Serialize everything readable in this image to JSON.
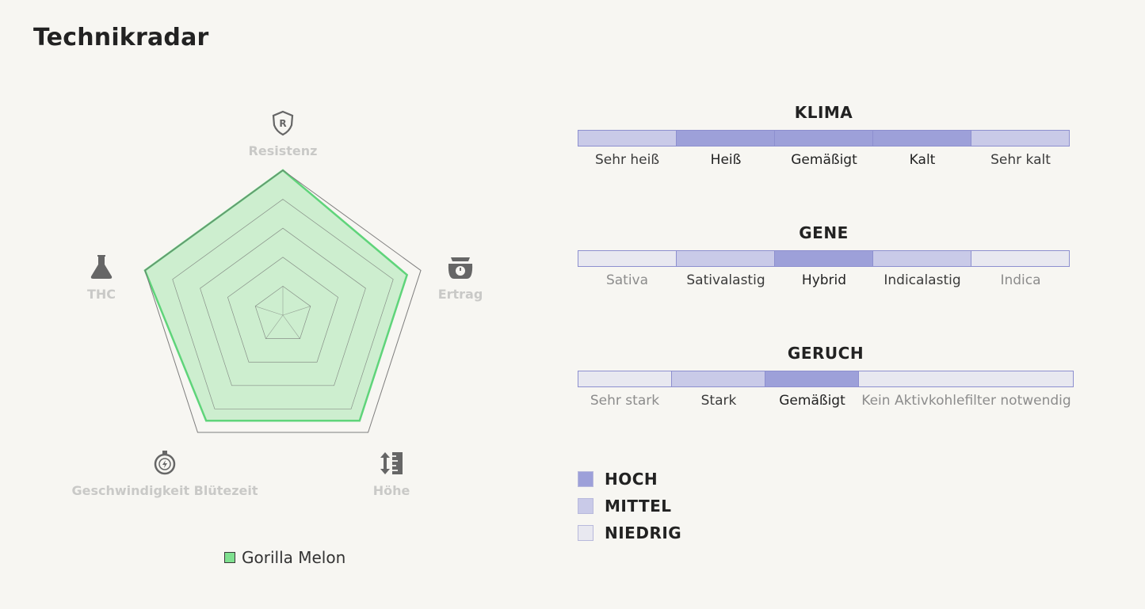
{
  "page": {
    "title": "Technikradar"
  },
  "colors": {
    "series_fill": "#7fe08f",
    "series_stroke": "#5fd47a",
    "grid": "#707070",
    "icon": "#666666",
    "hoch": "#9da0d9",
    "mittel": "#c9cae8",
    "niedrig": "#e8e8f0"
  },
  "chart_data": {
    "type": "radar",
    "axes": [
      {
        "label": "Resistenz",
        "icon": "shield-r-icon"
      },
      {
        "label": "Ertrag",
        "icon": "scale-icon"
      },
      {
        "label": "Höhe",
        "icon": "height-ruler-icon"
      },
      {
        "label": "Geschwindigkeit Blütezeit",
        "icon": "stopwatch-icon"
      },
      {
        "label": "THC",
        "icon": "flask-icon"
      }
    ],
    "max": 5,
    "grid_levels": 5,
    "series": [
      {
        "name": "Gorilla Melon",
        "values": [
          5,
          4.5,
          4.5,
          4.5,
          5
        ]
      }
    ],
    "legend": [
      "Gorilla Melon"
    ]
  },
  "scales": [
    {
      "title": "KLIMA",
      "segments": [
        {
          "label": "Sehr heiß",
          "level": "mittel"
        },
        {
          "label": "Heiß",
          "level": "hoch"
        },
        {
          "label": "Gemäßigt",
          "level": "hoch"
        },
        {
          "label": "Kalt",
          "level": "hoch"
        },
        {
          "label": "Sehr kalt",
          "level": "mittel"
        }
      ]
    },
    {
      "title": "GENE",
      "segments": [
        {
          "label": "Sativa",
          "level": "niedrig"
        },
        {
          "label": "Sativalastig",
          "level": "mittel"
        },
        {
          "label": "Hybrid",
          "level": "hoch"
        },
        {
          "label": "Indicalastig",
          "level": "mittel"
        },
        {
          "label": "Indica",
          "level": "niedrig"
        }
      ]
    },
    {
      "title": "GERUCH",
      "segments": [
        {
          "label": "Sehr stark",
          "level": "niedrig"
        },
        {
          "label": "Stark",
          "level": "mittel"
        },
        {
          "label": "Gemäßigt",
          "level": "hoch"
        },
        {
          "label": "Kein Aktivkohlefilter notwendig",
          "level": "niedrig"
        }
      ]
    }
  ],
  "key": [
    {
      "label": "HOCH",
      "level": "hoch"
    },
    {
      "label": "MITTEL",
      "level": "mittel"
    },
    {
      "label": "NIEDRIG",
      "level": "niedrig"
    }
  ]
}
